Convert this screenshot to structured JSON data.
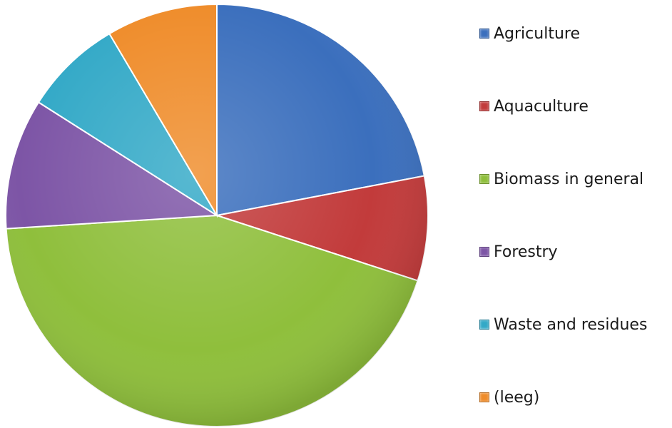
{
  "chart_data": {
    "type": "pie",
    "title": "",
    "slices": [
      {
        "label": "Agriculture",
        "value": 22,
        "color": "#3b6fbd"
      },
      {
        "label": "Aquaculture",
        "value": 8,
        "color": "#c23b3b"
      },
      {
        "label": "Biomass in general",
        "value": 44,
        "color": "#8fbf3c"
      },
      {
        "label": "Forestry",
        "value": 10,
        "color": "#7d55a6"
      },
      {
        "label": "Waste and residues",
        "value": 7.5,
        "color": "#33a9c7"
      },
      {
        "label": "(leeg)",
        "value": 8.5,
        "color": "#ef8c2a"
      }
    ],
    "start_angle_deg": 0,
    "direction": "clockwise",
    "legend_position": "right"
  }
}
